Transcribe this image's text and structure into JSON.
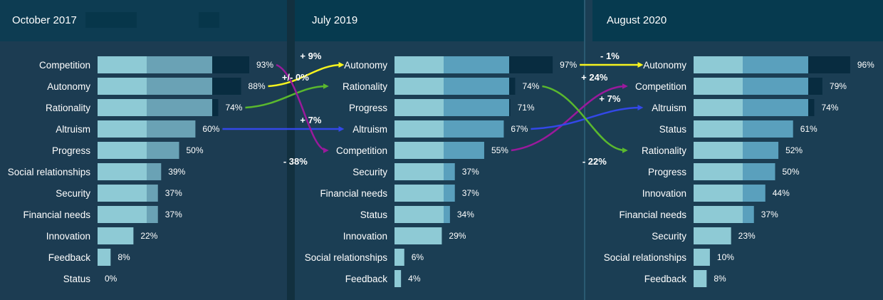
{
  "colors": {
    "background": "#1b3e54",
    "header": "#063a4f",
    "header_left_panel": "#0d3c52",
    "seg1": "#8ecad5",
    "seg2_left": "#6aa2b5",
    "seg2_right": "#5aa0bd",
    "seg3": "#082c40",
    "divider": "#12303f"
  },
  "chart_data": [
    {
      "type": "bar",
      "title": "October 2017",
      "categories": [
        "Competition",
        "Autonomy",
        "Rationality",
        "Altruism",
        "Progress",
        "Social relationships",
        "Security",
        "Financial needs",
        "Innovation",
        "Feedback",
        "Status"
      ],
      "values": [
        93,
        88,
        74,
        60,
        50,
        39,
        37,
        37,
        22,
        8,
        0
      ],
      "value_labels": [
        "93%",
        "88%",
        "74%",
        "60%",
        "50%",
        "39%",
        "37%",
        "37%",
        "22%",
        "8%",
        "0%"
      ],
      "unit": "%",
      "xlim": [
        0,
        100
      ]
    },
    {
      "type": "bar",
      "title": "July 2019",
      "categories": [
        "Autonomy",
        "Rationality",
        "Progress",
        "Altruism",
        "Competition",
        "Security",
        "Financial needs",
        "Status",
        "Innovation",
        "Social relationships",
        "Feedback"
      ],
      "values": [
        97,
        74,
        71,
        67,
        55,
        37,
        37,
        34,
        29,
        6,
        4
      ],
      "value_labels": [
        "97%",
        "74%",
        "71%",
        "67%",
        "55%",
        "37%",
        "37%",
        "34%",
        "29%",
        "6%",
        "4%"
      ],
      "unit": "%",
      "xlim": [
        0,
        100
      ]
    },
    {
      "type": "bar",
      "title": "August 2020",
      "categories": [
        "Autonomy",
        "Competition",
        "Altruism",
        "Status",
        "Rationality",
        "Progress",
        "Innovation",
        "Financial needs",
        "Security",
        "Social relationships",
        "Feedback"
      ],
      "values": [
        96,
        79,
        74,
        61,
        52,
        50,
        44,
        37,
        23,
        10,
        8
      ],
      "value_labels": [
        "96%",
        "79%",
        "74%",
        "61%",
        "52%",
        "50%",
        "44%",
        "37%",
        "23%",
        "10%",
        "8%"
      ],
      "unit": "%",
      "xlim": [
        0,
        100
      ]
    }
  ],
  "arrows": [
    {
      "from_panel": 0,
      "from_row": 1,
      "to_panel": 1,
      "to_row": 0,
      "color": "#f6f31f",
      "change": "+ 9%"
    },
    {
      "from_panel": 0,
      "from_row": 2,
      "to_panel": 1,
      "to_row": 1,
      "color": "#5ab82e",
      "change": "+/- 0%"
    },
    {
      "from_panel": 0,
      "from_row": 3,
      "to_panel": 1,
      "to_row": 3,
      "color": "#3348e8",
      "change": "+ 7%"
    },
    {
      "from_panel": 0,
      "from_row": 0,
      "to_panel": 1,
      "to_row": 4,
      "color": "#9a1a9c",
      "change": "- 38%"
    },
    {
      "from_panel": 1,
      "from_row": 0,
      "to_panel": 2,
      "to_row": 0,
      "color": "#f6f31f",
      "change": "- 1%"
    },
    {
      "from_panel": 1,
      "from_row": 4,
      "to_panel": 2,
      "to_row": 1,
      "color": "#9a1a9c",
      "change": "+ 24%"
    },
    {
      "from_panel": 1,
      "from_row": 3,
      "to_panel": 2,
      "to_row": 2,
      "color": "#3348e8",
      "change": "+ 7%"
    },
    {
      "from_panel": 1,
      "from_row": 1,
      "to_panel": 2,
      "to_row": 4,
      "color": "#5ab82e",
      "change": "- 22%"
    }
  ]
}
